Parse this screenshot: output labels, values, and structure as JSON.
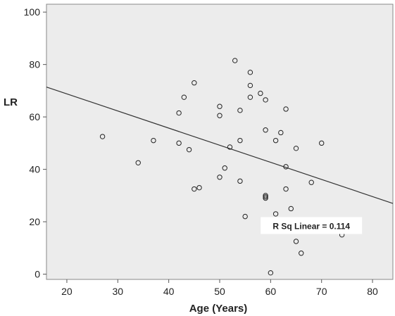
{
  "chart_data": {
    "type": "scatter",
    "title": "",
    "xlabel": "Age (Years)",
    "ylabel": "LR",
    "xlim": [
      16,
      84
    ],
    "ylim": [
      -2,
      103
    ],
    "xticks": [
      20,
      30,
      40,
      50,
      60,
      70,
      80
    ],
    "yticks": [
      0,
      20,
      40,
      60,
      80,
      100
    ],
    "grid": false,
    "points": [
      {
        "x": 27,
        "y": 52.5
      },
      {
        "x": 34,
        "y": 42.5
      },
      {
        "x": 37,
        "y": 51
      },
      {
        "x": 42,
        "y": 61.5
      },
      {
        "x": 42,
        "y": 50
      },
      {
        "x": 43,
        "y": 67.5
      },
      {
        "x": 44,
        "y": 47.5
      },
      {
        "x": 45,
        "y": 73
      },
      {
        "x": 45,
        "y": 32.5
      },
      {
        "x": 46,
        "y": 33
      },
      {
        "x": 50,
        "y": 64
      },
      {
        "x": 50,
        "y": 60.5
      },
      {
        "x": 50,
        "y": 37
      },
      {
        "x": 51,
        "y": 40.5
      },
      {
        "x": 52,
        "y": 48.5
      },
      {
        "x": 53,
        "y": 81.5
      },
      {
        "x": 54,
        "y": 62.5
      },
      {
        "x": 54,
        "y": 51
      },
      {
        "x": 54,
        "y": 35.5
      },
      {
        "x": 55,
        "y": 22
      },
      {
        "x": 56,
        "y": 77
      },
      {
        "x": 56,
        "y": 72
      },
      {
        "x": 56,
        "y": 67.5
      },
      {
        "x": 58,
        "y": 69
      },
      {
        "x": 59,
        "y": 66.5
      },
      {
        "x": 59,
        "y": 55
      },
      {
        "x": 59,
        "y": 30
      },
      {
        "x": 59,
        "y": 29.5
      },
      {
        "x": 59,
        "y": 29
      },
      {
        "x": 60,
        "y": 0.5
      },
      {
        "x": 61,
        "y": 51
      },
      {
        "x": 61,
        "y": 23
      },
      {
        "x": 62,
        "y": 54
      },
      {
        "x": 63,
        "y": 63
      },
      {
        "x": 63,
        "y": 41
      },
      {
        "x": 63,
        "y": 32.5
      },
      {
        "x": 64,
        "y": 25
      },
      {
        "x": 65,
        "y": 48
      },
      {
        "x": 65,
        "y": 12.5
      },
      {
        "x": 66,
        "y": 8
      },
      {
        "x": 68,
        "y": 35
      },
      {
        "x": 70,
        "y": 50
      },
      {
        "x": 74,
        "y": 15
      }
    ],
    "fit_line": {
      "x": [
        16,
        84
      ],
      "y": [
        71.4,
        27
      ]
    },
    "annotation": "R Sq Linear = 0.114",
    "colors": {
      "background": "#ececec",
      "marker": "#222222",
      "line": "#333333"
    }
  }
}
